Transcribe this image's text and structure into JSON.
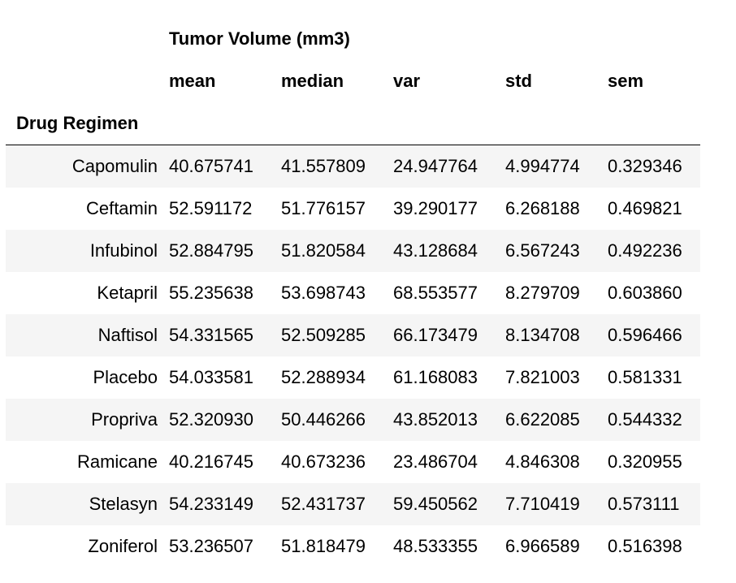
{
  "table": {
    "group_header": "Tumor Volume (mm3)",
    "columns": [
      "mean",
      "median",
      "var",
      "std",
      "sem"
    ],
    "index_name": "Drug Regimen",
    "rows": [
      {
        "label": "Capomulin",
        "values": [
          "40.675741",
          "41.557809",
          "24.947764",
          "4.994774",
          "0.329346"
        ]
      },
      {
        "label": "Ceftamin",
        "values": [
          "52.591172",
          "51.776157",
          "39.290177",
          "6.268188",
          "0.469821"
        ]
      },
      {
        "label": "Infubinol",
        "values": [
          "52.884795",
          "51.820584",
          "43.128684",
          "6.567243",
          "0.492236"
        ]
      },
      {
        "label": "Ketapril",
        "values": [
          "55.235638",
          "53.698743",
          "68.553577",
          "8.279709",
          "0.603860"
        ]
      },
      {
        "label": "Naftisol",
        "values": [
          "54.331565",
          "52.509285",
          "66.173479",
          "8.134708",
          "0.596466"
        ]
      },
      {
        "label": "Placebo",
        "values": [
          "54.033581",
          "52.288934",
          "61.168083",
          "7.821003",
          "0.581331"
        ]
      },
      {
        "label": "Propriva",
        "values": [
          "52.320930",
          "50.446266",
          "43.852013",
          "6.622085",
          "0.544332"
        ]
      },
      {
        "label": "Ramicane",
        "values": [
          "40.216745",
          "40.673236",
          "23.486704",
          "4.846308",
          "0.320955"
        ]
      },
      {
        "label": "Stelasyn",
        "values": [
          "54.233149",
          "52.431737",
          "59.450562",
          "7.710419",
          "0.573111"
        ]
      },
      {
        "label": "Zoniferol",
        "values": [
          "53.236507",
          "51.818479",
          "48.533355",
          "6.966589",
          "0.516398"
        ]
      }
    ]
  }
}
